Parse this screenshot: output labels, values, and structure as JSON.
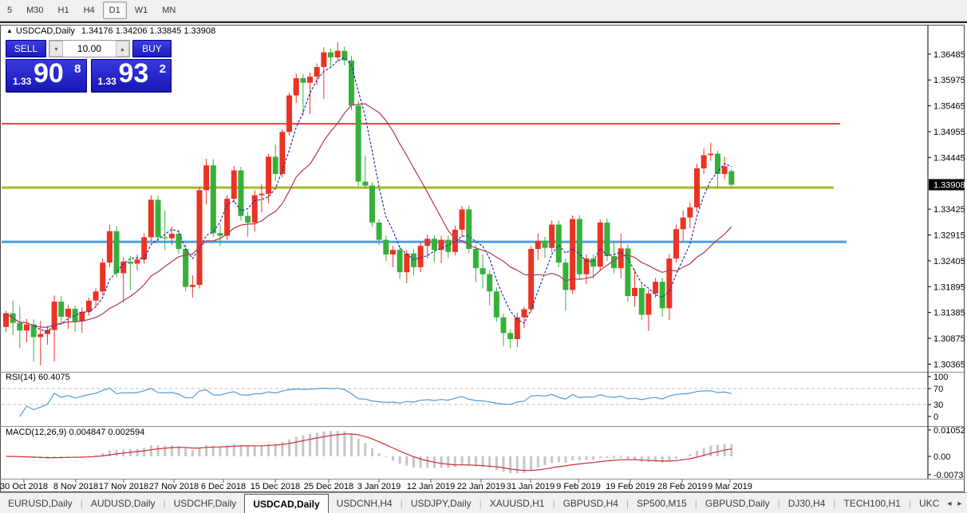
{
  "toolbar": {
    "timeframes": [
      {
        "label": "5",
        "active": false
      },
      {
        "label": "M30",
        "active": false
      },
      {
        "label": "H1",
        "active": false
      },
      {
        "label": "H4",
        "active": false
      },
      {
        "label": "D1",
        "active": true
      },
      {
        "label": "W1",
        "active": false
      },
      {
        "label": "MN",
        "active": false
      }
    ]
  },
  "header": {
    "collapse_icon": "▲",
    "symbol": "USDCAD,Daily",
    "ohlc_text": "1.34176 1.34206 1.33845 1.33908"
  },
  "trade_panel": {
    "sell_label": "SELL",
    "buy_label": "BUY",
    "volume": "10.00",
    "spin_down": "▾",
    "spin_up": "▴",
    "sell_price": {
      "small": "1.33",
      "big": "90",
      "sup": "8"
    },
    "buy_price": {
      "small": "1.33",
      "big": "93",
      "sup": "2"
    }
  },
  "rsi_panel": {
    "label": "RSI(14) 60.4075",
    "levels": [
      {
        "value": 100,
        "text": "100"
      },
      {
        "value": 70,
        "text": "70"
      },
      {
        "value": 30,
        "text": "30"
      },
      {
        "value": 0,
        "text": "0"
      }
    ],
    "line_color": "#4f9bd8"
  },
  "macd_panel": {
    "label": "MACD(12,26,9) 0.004847 0.002594",
    "levels": [
      {
        "value": 0.010525,
        "text": "0.010525"
      },
      {
        "value": 0,
        "text": "0.00"
      },
      {
        "value": -0.0073,
        "text": "-0.0073"
      }
    ],
    "hist_color": "#c6c6c6",
    "hist_stroke": "#a2a2a2",
    "signal_color": "#d02f2f"
  },
  "price_axis": {
    "labels": [
      "1.36485",
      "1.35975",
      "1.35465",
      "1.34955",
      "1.34445",
      "1.33425",
      "1.32915",
      "1.32405",
      "1.31895",
      "1.31385",
      "1.30875",
      "1.30365"
    ],
    "tag": "1.33908"
  },
  "date_axis": [
    {
      "x": 30,
      "label": "30 Oct 2018"
    },
    {
      "x": 95,
      "label": "8 Nov 2018"
    },
    {
      "x": 155,
      "label": "17 Nov 2018"
    },
    {
      "x": 218,
      "label": "27 Nov 2018"
    },
    {
      "x": 280,
      "label": "6 Dec 2018"
    },
    {
      "x": 345,
      "label": "15 Dec 2018"
    },
    {
      "x": 412,
      "label": "25 Dec 2018"
    },
    {
      "x": 475,
      "label": "3 Jan 2019"
    },
    {
      "x": 540,
      "label": "12 Jan 2019"
    },
    {
      "x": 603,
      "label": "22 Jan 2019"
    },
    {
      "x": 665,
      "label": "31 Jan 2019"
    },
    {
      "x": 725,
      "label": "9 Feb 2019"
    },
    {
      "x": 790,
      "label": "19 Feb 2019"
    },
    {
      "x": 855,
      "label": "28 Feb 2019"
    },
    {
      "x": 915,
      "label": "9 Mar 2019"
    }
  ],
  "tabs": {
    "items": [
      {
        "label": "EURUSD,Daily",
        "active": false
      },
      {
        "label": "AUDUSD,Daily",
        "active": false
      },
      {
        "label": "USDCHF,Daily",
        "active": false
      },
      {
        "label": "USDCAD,Daily",
        "active": true
      },
      {
        "label": "USDCNH,H4",
        "active": false
      },
      {
        "label": "USDJPY,Daily",
        "active": false
      },
      {
        "label": "XAUUSD,H1",
        "active": false
      },
      {
        "label": "GBPUSD,H4",
        "active": false
      },
      {
        "label": "SP500,M15",
        "active": false
      },
      {
        "label": "GBPUSD,Daily",
        "active": false
      },
      {
        "label": "DJ30,H4",
        "active": false
      },
      {
        "label": "TECH100,H1",
        "active": false
      },
      {
        "label": "UKC",
        "active": false
      }
    ],
    "scroll_left": "◂",
    "scroll_right": "▸"
  },
  "chart_data": {
    "type": "candlestick",
    "symbol": "USDCAD",
    "timeframe": "Daily",
    "last_bar": {
      "open": 1.34176,
      "high": 1.34206,
      "low": 1.33845,
      "close": 1.33908
    },
    "bid": "1.33908",
    "ask": "1.33932",
    "rsi_current": 60.4075,
    "macd_current": 0.004847,
    "macd_signal_current": 0.002594,
    "y_range": [
      1.30365,
      1.36485
    ],
    "up_color": "#ea3324",
    "down_color": "#35b13a",
    "ma_fast_color": "#2b2fa8",
    "ma_slow_color": "#b23756",
    "hlines": [
      {
        "price": 1.3511,
        "color": "#f23b32",
        "width": 2,
        "x_end": 1053
      },
      {
        "price": 1.3385,
        "color": "#a9b927",
        "width": 3,
        "x_end": 1045
      },
      {
        "price": 1.3278,
        "color": "#4f9ede",
        "width": 3,
        "x_end": 1061
      }
    ],
    "candles": [
      [
        1.311,
        1.3142,
        1.31,
        1.3137
      ],
      [
        1.3137,
        1.3162,
        1.3094,
        1.3118
      ],
      [
        1.3118,
        1.315,
        1.3068,
        1.3103
      ],
      [
        1.3103,
        1.3126,
        1.308,
        1.3115
      ],
      [
        1.3115,
        1.3125,
        1.3042,
        1.309
      ],
      [
        1.309,
        1.3122,
        1.3034,
        1.3096
      ],
      [
        1.3096,
        1.3112,
        1.3075,
        1.3104
      ],
      [
        1.3104,
        1.3172,
        1.3042,
        1.316
      ],
      [
        1.316,
        1.3171,
        1.3116,
        1.313
      ],
      [
        1.313,
        1.3153,
        1.3106,
        1.3146
      ],
      [
        1.3146,
        1.3152,
        1.31,
        1.3121
      ],
      [
        1.3121,
        1.3148,
        1.3098,
        1.314
      ],
      [
        1.314,
        1.3168,
        1.3132,
        1.3162
      ],
      [
        1.3162,
        1.3186,
        1.315,
        1.318
      ],
      [
        1.318,
        1.3245,
        1.3172,
        1.3237
      ],
      [
        1.3237,
        1.3312,
        1.3228,
        1.3299
      ],
      [
        1.3299,
        1.3308,
        1.3208,
        1.3216
      ],
      [
        1.3216,
        1.3247,
        1.3158,
        1.3239
      ],
      [
        1.3239,
        1.325,
        1.3183,
        1.3235
      ],
      [
        1.3235,
        1.3253,
        1.3222,
        1.3243
      ],
      [
        1.3243,
        1.3295,
        1.3235,
        1.3287
      ],
      [
        1.3287,
        1.337,
        1.328,
        1.3361
      ],
      [
        1.3361,
        1.3369,
        1.3278,
        1.3287
      ],
      [
        1.3287,
        1.334,
        1.3262,
        1.3285
      ],
      [
        1.3285,
        1.3308,
        1.3272,
        1.3294
      ],
      [
        1.3294,
        1.3302,
        1.3255,
        1.3264
      ],
      [
        1.3264,
        1.3272,
        1.318,
        1.3189
      ],
      [
        1.3189,
        1.3212,
        1.3168,
        1.3193
      ],
      [
        1.3193,
        1.3386,
        1.3186,
        1.338
      ],
      [
        1.338,
        1.3442,
        1.3352,
        1.3429
      ],
      [
        1.3429,
        1.3441,
        1.3288,
        1.3295
      ],
      [
        1.3295,
        1.3312,
        1.327,
        1.329
      ],
      [
        1.329,
        1.337,
        1.3282,
        1.3363
      ],
      [
        1.3363,
        1.3428,
        1.3356,
        1.3419
      ],
      [
        1.3419,
        1.3426,
        1.332,
        1.3329
      ],
      [
        1.3329,
        1.3338,
        1.3288,
        1.3316
      ],
      [
        1.3316,
        1.338,
        1.3298,
        1.337
      ],
      [
        1.337,
        1.3392,
        1.3336,
        1.3373
      ],
      [
        1.3373,
        1.3452,
        1.3354,
        1.3446
      ],
      [
        1.3446,
        1.347,
        1.3398,
        1.3412
      ],
      [
        1.3412,
        1.35,
        1.3405,
        1.3495
      ],
      [
        1.3495,
        1.3572,
        1.3488,
        1.3567
      ],
      [
        1.3567,
        1.361,
        1.3552,
        1.3601
      ],
      [
        1.3601,
        1.3609,
        1.3528,
        1.3592
      ],
      [
        1.3592,
        1.3612,
        1.353,
        1.3604
      ],
      [
        1.3604,
        1.363,
        1.3588,
        1.3623
      ],
      [
        1.3623,
        1.3662,
        1.356,
        1.3652
      ],
      [
        1.3652,
        1.366,
        1.3622,
        1.3642
      ],
      [
        1.3642,
        1.3672,
        1.3634,
        1.3655
      ],
      [
        1.3655,
        1.3663,
        1.3626,
        1.3636
      ],
      [
        1.3636,
        1.3645,
        1.3538,
        1.3547
      ],
      [
        1.3547,
        1.3556,
        1.3388,
        1.3397
      ],
      [
        1.3397,
        1.3448,
        1.3383,
        1.3389
      ],
      [
        1.3389,
        1.3396,
        1.3308,
        1.3316
      ],
      [
        1.3316,
        1.3323,
        1.3272,
        1.3282
      ],
      [
        1.3282,
        1.329,
        1.324,
        1.3253
      ],
      [
        1.3253,
        1.327,
        1.3228,
        1.3262
      ],
      [
        1.3262,
        1.327,
        1.3205,
        1.3218
      ],
      [
        1.3218,
        1.3262,
        1.3196,
        1.3255
      ],
      [
        1.3255,
        1.3264,
        1.3212,
        1.3228
      ],
      [
        1.3228,
        1.3278,
        1.3218,
        1.327
      ],
      [
        1.327,
        1.3292,
        1.3245,
        1.3284
      ],
      [
        1.3284,
        1.3291,
        1.3238,
        1.3262
      ],
      [
        1.3262,
        1.329,
        1.3236,
        1.3282
      ],
      [
        1.3282,
        1.329,
        1.3246,
        1.3258
      ],
      [
        1.3258,
        1.331,
        1.3251,
        1.3302
      ],
      [
        1.3302,
        1.3349,
        1.3288,
        1.3342
      ],
      [
        1.3342,
        1.335,
        1.3256,
        1.3264
      ],
      [
        1.3264,
        1.3272,
        1.3198,
        1.3226
      ],
      [
        1.3226,
        1.3254,
        1.3186,
        1.3214
      ],
      [
        1.3214,
        1.3222,
        1.3152,
        1.318
      ],
      [
        1.318,
        1.3188,
        1.312,
        1.3129
      ],
      [
        1.3129,
        1.3136,
        1.3072,
        1.3098
      ],
      [
        1.3098,
        1.3105,
        1.3067,
        1.3086
      ],
      [
        1.3086,
        1.3138,
        1.307,
        1.3129
      ],
      [
        1.3129,
        1.315,
        1.3108,
        1.3145
      ],
      [
        1.3145,
        1.327,
        1.3138,
        1.3264
      ],
      [
        1.3264,
        1.3295,
        1.3242,
        1.328
      ],
      [
        1.328,
        1.3288,
        1.3246,
        1.3266
      ],
      [
        1.3266,
        1.332,
        1.3258,
        1.3312
      ],
      [
        1.3312,
        1.332,
        1.3228,
        1.3237
      ],
      [
        1.3237,
        1.3245,
        1.3142,
        1.3183
      ],
      [
        1.3183,
        1.333,
        1.3175,
        1.3323
      ],
      [
        1.3323,
        1.3331,
        1.3205,
        1.3214
      ],
      [
        1.3214,
        1.3253,
        1.3195,
        1.3245
      ],
      [
        1.3245,
        1.3253,
        1.3206,
        1.3229
      ],
      [
        1.3229,
        1.3322,
        1.3221,
        1.3316
      ],
      [
        1.3316,
        1.3324,
        1.324,
        1.325
      ],
      [
        1.325,
        1.3277,
        1.3216,
        1.3226
      ],
      [
        1.3226,
        1.3294,
        1.3206,
        1.3265
      ],
      [
        1.3265,
        1.3273,
        1.316,
        1.3171
      ],
      [
        1.3171,
        1.3224,
        1.315,
        1.3187
      ],
      [
        1.3187,
        1.3195,
        1.3124,
        1.3134
      ],
      [
        1.3134,
        1.3184,
        1.3102,
        1.3176
      ],
      [
        1.3176,
        1.3207,
        1.3168,
        1.3199
      ],
      [
        1.3199,
        1.3207,
        1.313,
        1.3147
      ],
      [
        1.3147,
        1.3254,
        1.3124,
        1.3245
      ],
      [
        1.3245,
        1.3312,
        1.3237,
        1.3303
      ],
      [
        1.3303,
        1.334,
        1.328,
        1.3326
      ],
      [
        1.3326,
        1.3355,
        1.3305,
        1.3346
      ],
      [
        1.3346,
        1.3432,
        1.3338,
        1.3423
      ],
      [
        1.3423,
        1.3462,
        1.3412,
        1.3449
      ],
      [
        1.3449,
        1.3474,
        1.3438,
        1.3452
      ],
      [
        1.3452,
        1.3458,
        1.3385,
        1.3412
      ],
      [
        1.3412,
        1.3445,
        1.3402,
        1.3427
      ],
      [
        1.34176,
        1.34206,
        1.33845,
        1.33908
      ]
    ]
  }
}
